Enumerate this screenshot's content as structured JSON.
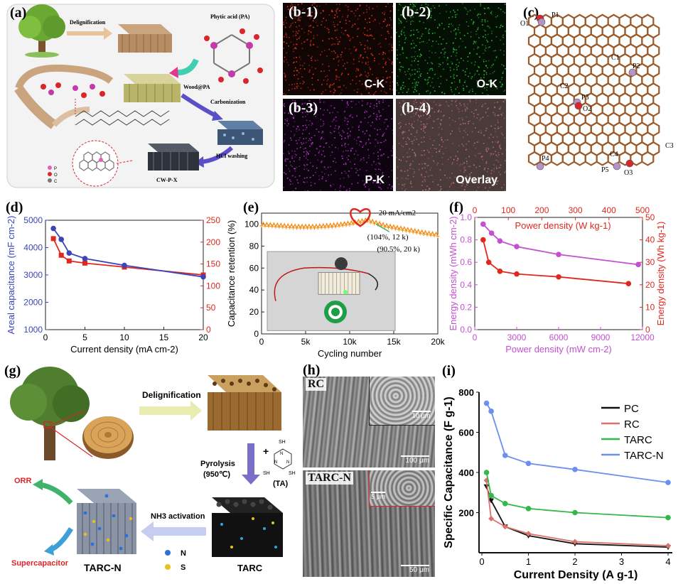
{
  "panel_a": {
    "label": "(a)",
    "steps": [
      "Delignification",
      "Phytic acid (PA)",
      "Wood@PA",
      "Carbonization",
      "HCl washing",
      "CW-P-X"
    ],
    "legend": [
      "P",
      "O",
      "C"
    ]
  },
  "panel_b": {
    "tiles": [
      {
        "label": "(b-1)",
        "element": "C-K",
        "color": "#ff3a1e"
      },
      {
        "label": "(b-2)",
        "element": "O-K",
        "color": "#2fd13a"
      },
      {
        "label": "(b-3)",
        "element": "P-K",
        "color": "#c43ad8"
      },
      {
        "label": "(b-4)",
        "element": "Overlay",
        "color": "#c87878"
      }
    ]
  },
  "panel_c": {
    "label": "(c)",
    "atoms": [
      "O1",
      "P1",
      "C1",
      "P2",
      "C2",
      "P3",
      "O2",
      "C3",
      "P4",
      "C4",
      "P5",
      "O3"
    ]
  },
  "panel_d": {
    "label": "(d)",
    "chart_data": {
      "type": "line",
      "xlabel": "Current density (mA cm-2)",
      "ylabel_left": "Areal capacitance (mF cm-2)",
      "ylabel_right": "Specific capacitance (F g-1)",
      "xlim": [
        0,
        20
      ],
      "xticks": [
        "0",
        "5",
        "10",
        "15",
        "20"
      ],
      "ylim_left": [
        1000,
        5000
      ],
      "yticks_left": [
        "1000",
        "2000",
        "3000",
        "4000",
        "5000"
      ],
      "ylim_right": [
        0,
        250
      ],
      "yticks_right": [
        "0",
        "50",
        "100",
        "150",
        "200",
        "250"
      ],
      "series": [
        {
          "axis": "left",
          "color": "#3b45b8",
          "x": [
            1,
            2,
            3,
            5,
            10,
            20
          ],
          "y": [
            4700,
            4300,
            3800,
            3600,
            3350,
            2930
          ]
        },
        {
          "axis": "right",
          "color": "#e0281e",
          "x": [
            1,
            2,
            3,
            5,
            10,
            20
          ],
          "y": [
            208,
            170,
            157,
            152,
            143,
            125
          ]
        }
      ]
    }
  },
  "panel_e": {
    "label": "(e)",
    "chart_data": {
      "type": "line",
      "xlabel": "Cycling number",
      "ylabel": "Capacitance retention (%)",
      "xlim": [
        0,
        20000
      ],
      "xticks": [
        "0",
        "5k",
        "10k",
        "15k",
        "20k"
      ],
      "ylim": [
        0,
        110
      ],
      "yticks": [
        "0",
        "20",
        "40",
        "60",
        "80",
        "100"
      ],
      "annotations": [
        "20 mA/cm2",
        "(104%, 12 k)",
        "(90.5%, 20 k)"
      ],
      "series": [
        {
          "color": "#f39019",
          "x": [
            0,
            2000,
            4000,
            6000,
            8000,
            10000,
            12000,
            14000,
            16000,
            18000,
            20000
          ],
          "y": [
            100,
            99,
            98,
            98,
            99,
            101,
            104,
            99,
            96,
            93,
            90.5
          ]
        }
      ]
    }
  },
  "panel_f": {
    "label": "(f)",
    "chart_data": {
      "type": "line",
      "xlabel_bottom": "Power density (mW cm-2)",
      "xlabel_top": "Power density (W kg-1)",
      "ylabel_left": "Energy density (mWh cm-2)",
      "ylabel_right": "Energy density (Wh kg-1)",
      "xlim_bottom": [
        0,
        12000
      ],
      "xticks_bottom": [
        "0",
        "3000",
        "6000",
        "9000",
        "12000"
      ],
      "xlim_top": [
        0,
        500
      ],
      "xticks_top": [
        "0",
        "100",
        "200",
        "300",
        "400",
        "500"
      ],
      "ylim_left": [
        0,
        1.0
      ],
      "yticks_left": [
        "0.0",
        "0.2",
        "0.4",
        "0.6",
        "0.8",
        "1.0"
      ],
      "ylim_right": [
        0,
        50
      ],
      "yticks_right": [
        "0",
        "10",
        "20",
        "30",
        "40",
        "50"
      ],
      "series": [
        {
          "axis": "left-bottom",
          "color": "#c44fd1",
          "x": [
            600,
            1200,
            1800,
            3000,
            6000,
            11700
          ],
          "y": [
            0.94,
            0.86,
            0.79,
            0.74,
            0.67,
            0.58
          ]
        },
        {
          "axis": "right-bottom",
          "color": "#e0281e",
          "x": [
            600,
            1000,
            1800,
            3000,
            6000,
            11000
          ],
          "y": [
            40,
            30,
            26,
            24.8,
            23.5,
            20.5
          ]
        }
      ]
    }
  },
  "panel_g": {
    "label": "(g)",
    "steps": [
      "Delignification",
      "Pyrolysis",
      "(950℃)",
      "NH3 activation",
      "(TA)",
      "TARC",
      "TARC-N",
      "ORR",
      "Supercapacitor"
    ],
    "legend": [
      "N",
      "S"
    ],
    "ta_atoms": [
      "SH",
      "SH",
      "SH",
      "N",
      "N",
      "N"
    ]
  },
  "panel_h": {
    "label": "(h)",
    "sample_top": "RC",
    "sample_bottom": "TARC-N",
    "scales": [
      "10 μm",
      "100 μm",
      "5 μm",
      "50 μm"
    ]
  },
  "panel_i": {
    "label": "(i)",
    "chart_data": {
      "type": "line",
      "xlabel": "Current Density (A g-1)",
      "ylabel": "Specific Capacitance (F g-1)",
      "xlim": [
        0,
        4
      ],
      "xticks": [
        "0",
        "1",
        "2",
        "3",
        "4"
      ],
      "ylim": [
        0,
        800
      ],
      "yticks": [
        "200",
        "400",
        "600",
        "800"
      ],
      "legend_position": "top-right",
      "series": [
        {
          "name": "PC",
          "color": "#111111",
          "x": [
            0.1,
            0.2,
            0.5,
            1,
            2,
            4
          ],
          "y": [
            330,
            260,
            130,
            85,
            45,
            28
          ]
        },
        {
          "name": "RC",
          "color": "#d9736b",
          "x": [
            0.1,
            0.2,
            0.5,
            1,
            2,
            4
          ],
          "y": [
            360,
            170,
            130,
            95,
            55,
            35
          ]
        },
        {
          "name": "TARC",
          "color": "#33b84a",
          "x": [
            0.1,
            0.2,
            0.5,
            1,
            2,
            4
          ],
          "y": [
            400,
            285,
            245,
            220,
            200,
            175
          ]
        },
        {
          "name": "TARC-N",
          "color": "#6e8ff0",
          "x": [
            0.1,
            0.2,
            0.5,
            1,
            2,
            4
          ],
          "y": [
            745,
            705,
            485,
            445,
            415,
            350
          ]
        }
      ]
    }
  }
}
